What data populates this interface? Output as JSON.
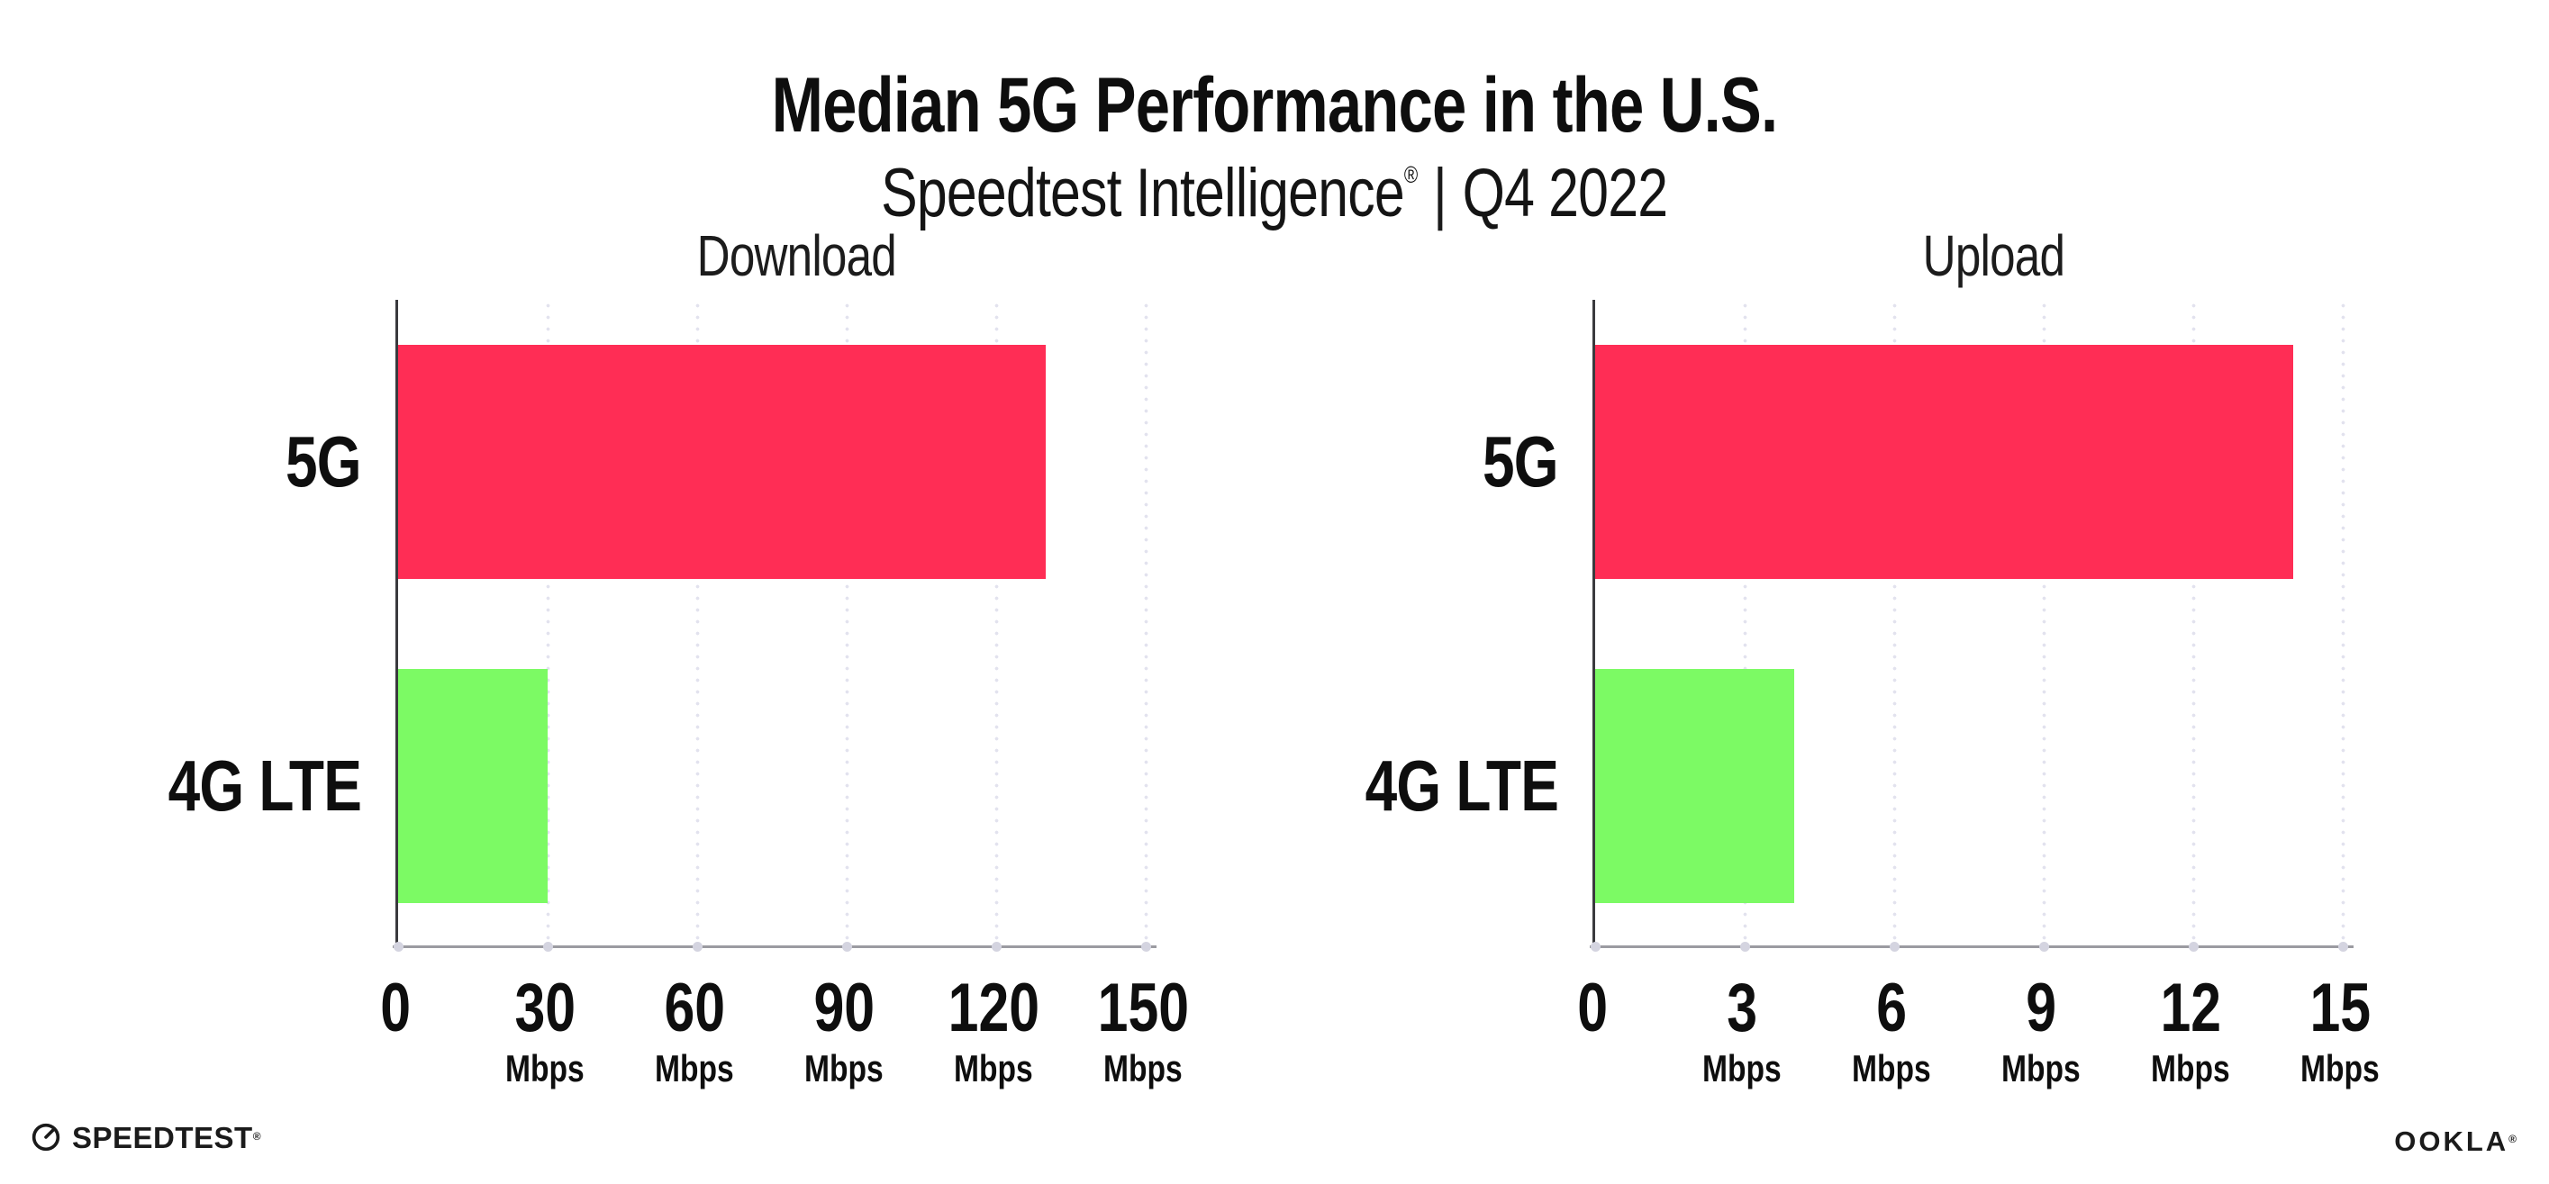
{
  "header": {
    "title": "Median 5G Performance in the U.S.",
    "product": "Speedtest Intelligence",
    "registered_mark": "®",
    "separator": "|",
    "period": "Q4 2022"
  },
  "chart_data": [
    {
      "type": "bar",
      "orientation": "horizontal",
      "title": "Download",
      "categories": [
        "5G",
        "4G LTE"
      ],
      "values": [
        130,
        30
      ],
      "unit": "Mbps",
      "xlim": [
        0,
        150
      ],
      "xticks": [
        0,
        30,
        60,
        90,
        120,
        150
      ],
      "bar_colors": [
        "#FF2D55",
        "#7CFA64"
      ],
      "grid": "vertical-dotted",
      "value_labels_shown": false,
      "legend": "none"
    },
    {
      "type": "bar",
      "orientation": "horizontal",
      "title": "Upload",
      "categories": [
        "5G",
        "4G LTE"
      ],
      "values": [
        14,
        4
      ],
      "unit": "Mbps",
      "xlim": [
        0,
        15
      ],
      "xticks": [
        0,
        3,
        6,
        9,
        12,
        15
      ],
      "bar_colors": [
        "#FF2D55",
        "#7CFA64"
      ],
      "grid": "vertical-dotted",
      "value_labels_shown": false,
      "legend": "none"
    }
  ],
  "colors": {
    "bar_5g": "#FF2D55",
    "bar_4g_lte": "#7CFA64",
    "gridline_dots": "#E2E2EE",
    "x_axis_line": "#9B9BA1",
    "y_axis_line": "#3A3A3E",
    "text": "#121212"
  },
  "footer": {
    "speedtest_label": "SPEEDTEST",
    "speedtest_mark": "®",
    "speedtest_icon": "gauge-icon",
    "ookla_label": "OOKLA",
    "ookla_mark": "®"
  }
}
